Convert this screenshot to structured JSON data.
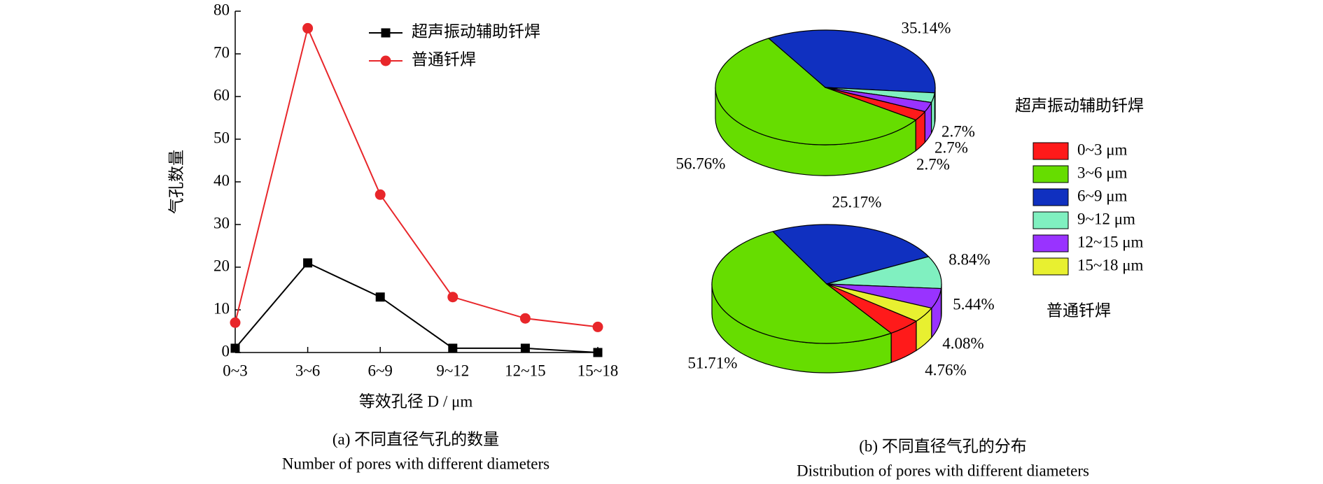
{
  "chart_data": [
    {
      "type": "line",
      "title": "(a) 不同直径气孔的数量",
      "subtitle": "Number of pores with different diameters",
      "xlabel": "等效孔径 D / μm",
      "ylabel": "气孔数量",
      "categories": [
        "0~3",
        "3~6",
        "6~9",
        "9~12",
        "12~15",
        "15~18"
      ],
      "series": [
        {
          "name": "超声振动辅助钎焊",
          "color": "#000000",
          "marker": "square",
          "values": [
            1,
            21,
            13,
            1,
            1,
            0
          ]
        },
        {
          "name": "普通钎焊",
          "color": "#e8262a",
          "marker": "circle",
          "values": [
            7,
            76,
            37,
            13,
            8,
            6
          ]
        }
      ],
      "ylim": [
        0,
        80
      ],
      "yticks": [
        0,
        10,
        20,
        30,
        40,
        50,
        60,
        70,
        80
      ],
      "legend": "upper center"
    },
    {
      "type": "pie",
      "title": "(b) 不同直径气孔的分布",
      "subtitle": "Distribution of pores with different diameters",
      "categories": [
        "0~3 μm",
        "3~6 μm",
        "6~9 μm",
        "9~12 μm",
        "12~15 μm",
        "15~18 μm"
      ],
      "colors": [
        "#ff1a1a",
        "#66dd00",
        "#1030c0",
        "#80f0c0",
        "#9933ff",
        "#e8f030"
      ],
      "series": [
        {
          "name": "超声振动辅助钎焊",
          "values": [
            2.7,
            56.76,
            35.14,
            2.7,
            2.7,
            0
          ],
          "value_labels": [
            "2.7%",
            "56.76%",
            "35.14%",
            "2.7%",
            "2.7%",
            null
          ]
        },
        {
          "name": "普通钎焊",
          "values": [
            4.76,
            51.71,
            25.17,
            8.84,
            5.44,
            4.08
          ],
          "value_labels": [
            "4.76%",
            "51.71%",
            "25.17%",
            "8.84%",
            "5.44%",
            "4.08%"
          ]
        }
      ]
    }
  ]
}
